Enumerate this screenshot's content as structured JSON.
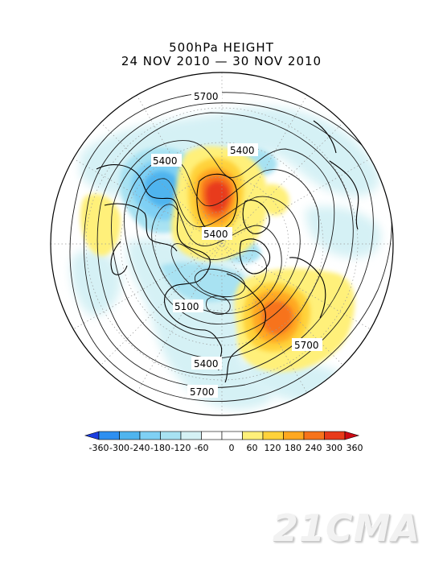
{
  "title": "500hPa HEIGHT",
  "subtitle": "24 NOV 2010 — 30 NOV 2010",
  "contour_labels": [
    "5700",
    "5400",
    "5400",
    "5400",
    "5100",
    "5700",
    "5400",
    "5700"
  ],
  "colorbar": {
    "ticks": [
      "-360",
      "-300",
      "-240",
      "-180",
      "-120",
      "-60",
      "0",
      "60",
      "120",
      "180",
      "240",
      "300",
      "360"
    ],
    "colors": [
      "#1a3de0",
      "#2e8ff0",
      "#4fb4ee",
      "#7fd0f4",
      "#a8e2f2",
      "#d5f1f5",
      "#ffffff",
      "#ffffff",
      "#fff07a",
      "#ffd23a",
      "#ffa820",
      "#f7731b",
      "#e83a1a",
      "#cc0a14"
    ]
  },
  "watermark": "21CMA"
}
